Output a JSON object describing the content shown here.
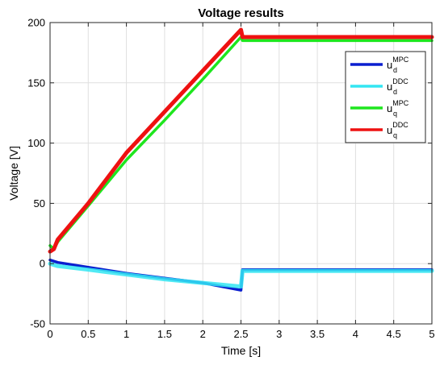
{
  "chart_data": {
    "type": "line",
    "title": "Voltage results",
    "xlabel": "Time [s]",
    "ylabel": "Voltage [V]",
    "xlim": [
      0,
      5
    ],
    "ylim": [
      -50,
      200
    ],
    "xticks": [
      0,
      0.5,
      1,
      1.5,
      2,
      2.5,
      3,
      3.5,
      4,
      4.5,
      5
    ],
    "xtick_labels": [
      "0",
      "0.5",
      "1",
      "1.5",
      "2",
      "2.5",
      "3",
      "3.5",
      "4",
      "4.5",
      "5"
    ],
    "yticks": [
      -50,
      0,
      50,
      100,
      150,
      200
    ],
    "ytick_labels": [
      "-50",
      "0",
      "50",
      "100",
      "150",
      "200"
    ],
    "grid": true,
    "legend_position": "top-right",
    "series": [
      {
        "label_base": "u",
        "label_sup": "MPC",
        "label_sub": "d",
        "color": "#0a1ecf",
        "x": [
          0,
          0.05,
          0.1,
          0.5,
          1.0,
          1.5,
          2.0,
          2.5,
          2.52,
          3,
          3.5,
          4,
          4.5,
          5
        ],
        "y": [
          3,
          2,
          1,
          -3,
          -8,
          -12,
          -16,
          -22,
          -5,
          -5,
          -5,
          -5,
          -5,
          -5
        ]
      },
      {
        "label_base": "u",
        "label_sup": "DDC",
        "label_sub": "d",
        "color": "#33e6f2",
        "x": [
          0,
          0.05,
          0.1,
          0.5,
          1.0,
          1.5,
          2.0,
          2.5,
          2.52,
          3,
          3.5,
          4,
          4.5,
          5
        ],
        "y": [
          0,
          -1,
          -2,
          -5,
          -9,
          -13,
          -16,
          -19,
          -6,
          -6,
          -6,
          -6,
          -6,
          -6
        ]
      },
      {
        "label_base": "u",
        "label_sup": "MPC",
        "label_sub": "q",
        "color": "#1ee61e",
        "x": [
          0,
          0.05,
          0.1,
          0.5,
          1.0,
          1.5,
          2.0,
          2.5,
          2.52,
          3,
          3.5,
          4,
          4.5,
          5
        ],
        "y": [
          15,
          12,
          18,
          48,
          86,
          119,
          153,
          188,
          185,
          185,
          185,
          185,
          185,
          185
        ]
      },
      {
        "label_base": "u",
        "label_sup": "DDC",
        "label_sub": "q",
        "color": "#ee1111",
        "x": [
          0,
          0.05,
          0.1,
          0.5,
          1.0,
          1.5,
          2.0,
          2.5,
          2.52,
          3,
          3.5,
          4,
          4.5,
          5
        ],
        "y": [
          10,
          12,
          20,
          50,
          92,
          126,
          160,
          194,
          188,
          188,
          188,
          188,
          188,
          188
        ]
      }
    ]
  }
}
